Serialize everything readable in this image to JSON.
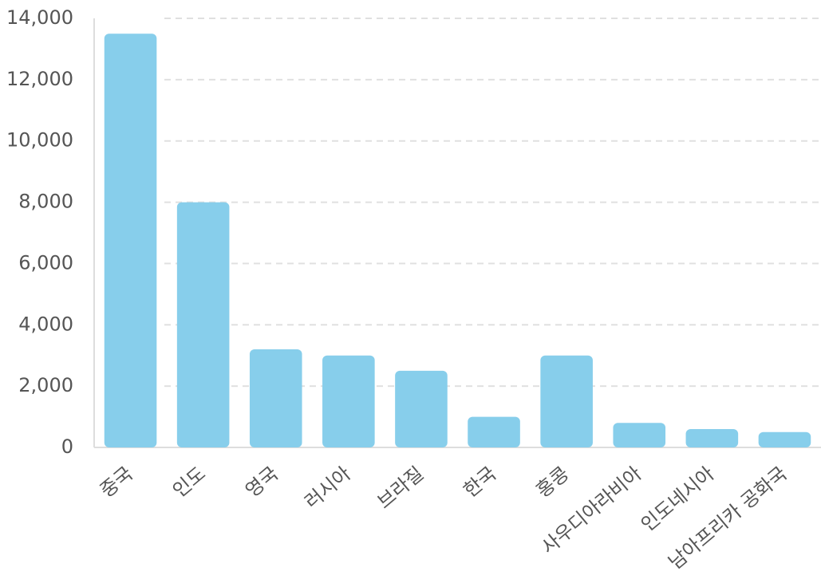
{
  "chart_data": {
    "type": "bar",
    "categories": [
      "중국",
      "인도",
      "영국",
      "러시아",
      "브라질",
      "한국",
      "홍콩",
      "사우디아라비아",
      "인도네시아",
      "남아프리카 공화국"
    ],
    "values": [
      13500,
      8000,
      3200,
      3000,
      2500,
      1000,
      3000,
      800,
      600,
      500
    ],
    "color": "#87ceeb",
    "ylim": [
      0,
      14000
    ],
    "yticks": [
      0,
      {
        "value": 2000,
        "label": "2,000"
      },
      {
        "value": 4000,
        "label": "4,000"
      },
      {
        "value": 6000,
        "label": "6,000"
      },
      {
        "value": 8000,
        "label": "8,000"
      },
      {
        "value": 10000,
        "label": "10,000"
      },
      {
        "value": 12000,
        "label": "12,000"
      },
      {
        "value": 14000,
        "label": "14,000"
      }
    ],
    "grid": true
  }
}
